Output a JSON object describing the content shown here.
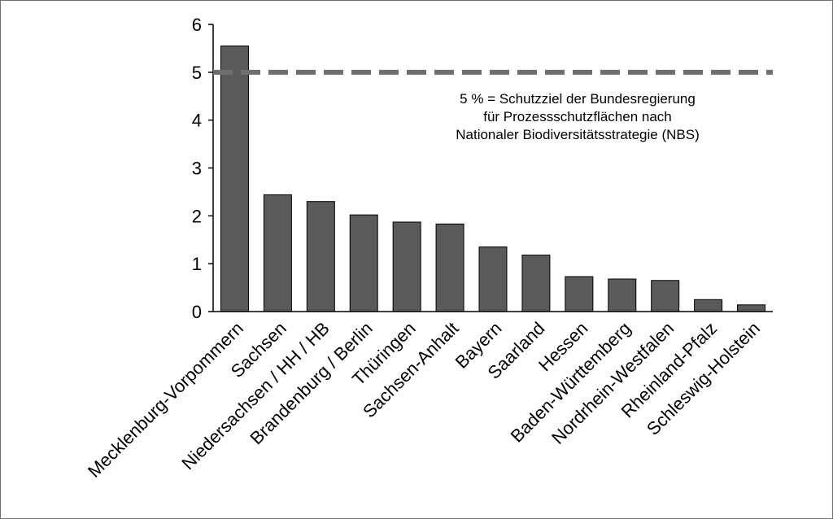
{
  "chart_data": {
    "type": "bar",
    "categories": [
      "Mecklenburg-Vorpommern",
      "Sachsen",
      "Niedersachsen / HH / HB",
      "Brandenburg / Berlin",
      "Thüringen",
      "Sachsen-Anhalt",
      "Bayern",
      "Saarland",
      "Hessen",
      "Baden-Württemberg",
      "Nordrhein-Westfalen",
      "Rheinland-Pfalz",
      "Schleswig-Holstein"
    ],
    "values": [
      5.55,
      2.44,
      2.3,
      2.02,
      1.87,
      1.83,
      1.35,
      1.18,
      0.73,
      0.68,
      0.65,
      0.25,
      0.14
    ],
    "title": "",
    "xlabel": "",
    "ylabel": "",
    "ylim": [
      0,
      6
    ],
    "yticks": [
      "0",
      "1",
      "2",
      "3",
      "4",
      "5",
      "6"
    ],
    "grid": false,
    "bar_color": "#5a5a5a",
    "reference_line": {
      "value": 5,
      "style": "dashed",
      "color": "#6e6e6e"
    },
    "annotation": [
      "5 % = Schutzziel der Bundesregierung",
      "für Prozessschutzflächen nach",
      "Nationaler Biodiversitätsstrategie (NBS)"
    ]
  }
}
